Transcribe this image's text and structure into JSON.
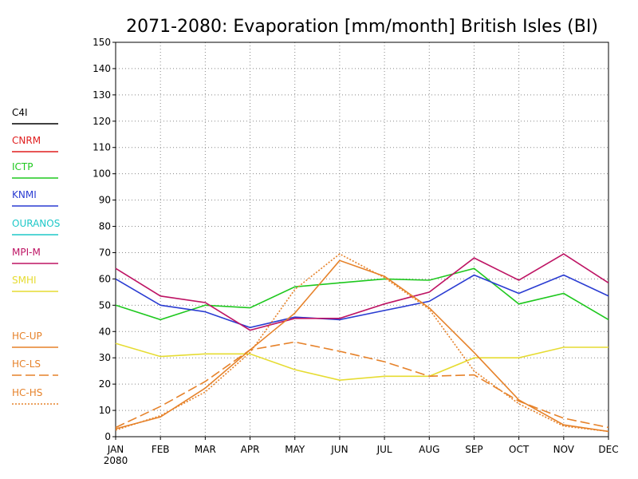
{
  "chart_data": {
    "type": "line",
    "title": "2071-2080: Evaporation [mm/month] British Isles (BI)",
    "categories": [
      "JAN",
      "FEB",
      "MAR",
      "APR",
      "MAY",
      "JUN",
      "JUL",
      "AUG",
      "SEP",
      "OCT",
      "NOV",
      "DEC"
    ],
    "x_sublabel": "2080",
    "ylim": [
      0,
      150
    ],
    "yticks": [
      0,
      10,
      20,
      30,
      40,
      50,
      60,
      70,
      80,
      90,
      100,
      110,
      120,
      130,
      140,
      150
    ],
    "grid": true,
    "legend": "left",
    "series": [
      {
        "name": "C4I",
        "color": "#000000",
        "linestyle": "solid",
        "values": [
          null,
          null,
          null,
          null,
          null,
          null,
          null,
          null,
          null,
          null,
          null,
          null
        ]
      },
      {
        "name": "CNRM",
        "color": "#e01e1e",
        "linestyle": "solid",
        "values": [
          null,
          null,
          null,
          null,
          null,
          null,
          null,
          null,
          null,
          null,
          null,
          null
        ]
      },
      {
        "name": "ICTP",
        "color": "#1ec81e",
        "linestyle": "solid",
        "values": [
          50,
          44.5,
          50,
          49,
          57,
          58.5,
          60,
          59.5,
          64,
          50.5,
          54.5,
          44.5
        ]
      },
      {
        "name": "KNMI",
        "color": "#2a3cd2",
        "linestyle": "solid",
        "values": [
          60,
          50,
          47.5,
          41.5,
          45.5,
          44.5,
          48,
          51.5,
          61.5,
          54.5,
          61.5,
          53.5
        ]
      },
      {
        "name": "OURANOS",
        "color": "#1ec8c8",
        "linestyle": "solid",
        "values": [
          null,
          null,
          null,
          null,
          null,
          null,
          null,
          null,
          null,
          null,
          null,
          null
        ]
      },
      {
        "name": "MPI-M",
        "color": "#be1464",
        "linestyle": "solid",
        "values": [
          64,
          53.5,
          51,
          40.5,
          45,
          45,
          50.5,
          55,
          68,
          59.5,
          69.5,
          58.5
        ]
      },
      {
        "name": "SMHI",
        "color": "#e6dc32",
        "linestyle": "solid",
        "values": [
          35.5,
          30.5,
          31.5,
          31.5,
          25.5,
          21.5,
          23,
          23,
          30,
          30,
          34,
          34
        ]
      },
      {
        "name": "HC-UP",
        "color": "#e6822a",
        "linestyle": "solid",
        "values": [
          3,
          7.5,
          18.5,
          33,
          47,
          67,
          61,
          49,
          32,
          14,
          4.5,
          2
        ]
      },
      {
        "name": "HC-LS",
        "color": "#e6822a",
        "linestyle": "dashed",
        "values": [
          3.5,
          11.5,
          21,
          33,
          36,
          32.5,
          28.5,
          23,
          23.5,
          13.5,
          7,
          3.5
        ]
      },
      {
        "name": "HC-HS",
        "color": "#e6822a",
        "linestyle": "dotted",
        "values": [
          2.5,
          8,
          17,
          32,
          56,
          69.5,
          60.5,
          48.5,
          25,
          12.5,
          4,
          2
        ]
      }
    ]
  }
}
